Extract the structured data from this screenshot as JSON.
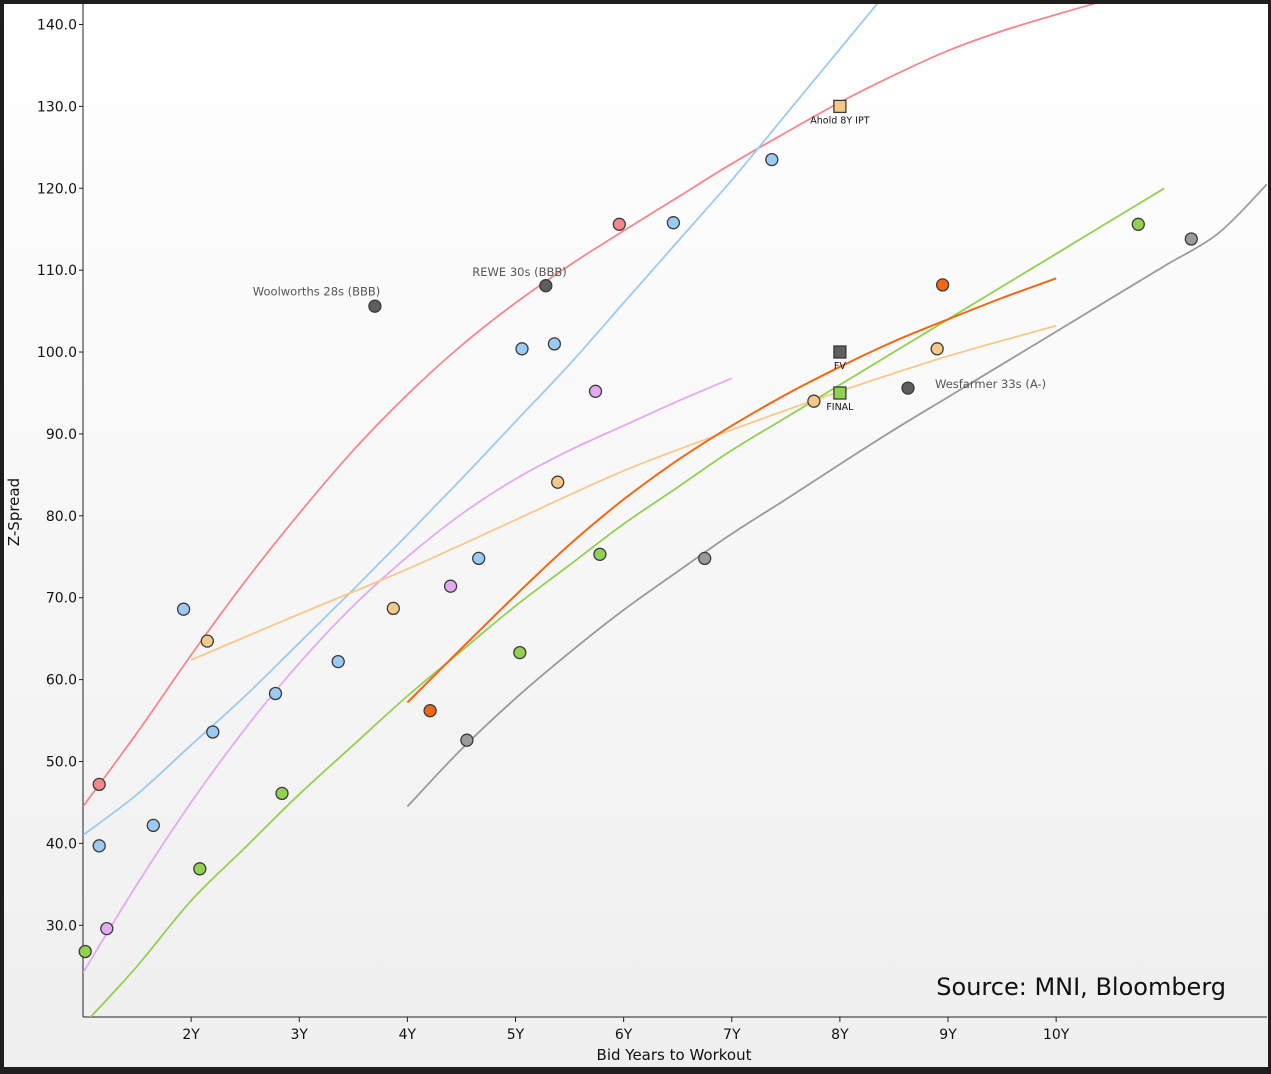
{
  "chart_data": {
    "type": "scatter",
    "title": "",
    "xlabel": "Bid Years to Workout",
    "ylabel": "Z-Spread",
    "source": "Source: MNI, Bloomberg",
    "xlim": [
      1.0,
      11.95
    ],
    "ylim": [
      18.8,
      142.5
    ],
    "x_ticks": [
      {
        "v": 2,
        "label": "2Y"
      },
      {
        "v": 3,
        "label": "3Y"
      },
      {
        "v": 4,
        "label": "4Y"
      },
      {
        "v": 5,
        "label": "5Y"
      },
      {
        "v": 6,
        "label": "6Y"
      },
      {
        "v": 7,
        "label": "7Y"
      },
      {
        "v": 8,
        "label": "8Y"
      },
      {
        "v": 9,
        "label": "9Y"
      },
      {
        "v": 10,
        "label": "10Y"
      }
    ],
    "y_ticks": [
      {
        "v": 30,
        "label": "30.0"
      },
      {
        "v": 40,
        "label": "40.0"
      },
      {
        "v": 50,
        "label": "50.0"
      },
      {
        "v": 60,
        "label": "60.0"
      },
      {
        "v": 70,
        "label": "70.0"
      },
      {
        "v": 80,
        "label": "80.0"
      },
      {
        "v": 90,
        "label": "90.0"
      },
      {
        "v": 100,
        "label": "100.0"
      },
      {
        "v": 110,
        "label": "110.0"
      },
      {
        "v": 120,
        "label": "120.0"
      },
      {
        "v": 130,
        "label": "130.0"
      },
      {
        "v": 140,
        "label": "140.0"
      }
    ],
    "series": [
      {
        "name": "pink",
        "color": "#f4868c",
        "curve": [
          [
            1.0,
            44.5
          ],
          [
            1.5,
            53.5
          ],
          [
            2.0,
            63.0
          ],
          [
            2.5,
            72.0
          ],
          [
            3.0,
            80.3
          ],
          [
            3.5,
            88.0
          ],
          [
            4.0,
            94.8
          ],
          [
            4.5,
            100.8
          ],
          [
            5.0,
            106.0
          ],
          [
            5.5,
            110.6
          ],
          [
            6.0,
            114.8
          ],
          [
            6.5,
            118.9
          ],
          [
            7.0,
            123.0
          ],
          [
            7.5,
            126.8
          ],
          [
            8.0,
            130.5
          ],
          [
            8.5,
            133.8
          ],
          [
            9.0,
            136.8
          ],
          [
            9.5,
            139.2
          ],
          [
            10.0,
            141.2
          ],
          [
            10.6,
            143.5
          ]
        ],
        "points": [
          [
            1.15,
            47.2
          ],
          [
            5.96,
            115.6
          ]
        ]
      },
      {
        "name": "light-blue",
        "color": "#9bcaf2",
        "curve": [
          [
            1.0,
            41.0
          ],
          [
            1.5,
            46.0
          ],
          [
            2.0,
            52.0
          ],
          [
            2.5,
            58.0
          ],
          [
            3.0,
            64.5
          ],
          [
            3.5,
            71.0
          ],
          [
            4.0,
            77.7
          ],
          [
            4.5,
            84.5
          ],
          [
            5.0,
            91.5
          ],
          [
            5.5,
            98.5
          ],
          [
            6.0,
            106.0
          ],
          [
            6.5,
            113.5
          ],
          [
            7.0,
            121.0
          ],
          [
            7.5,
            129.0
          ],
          [
            8.0,
            137.0
          ],
          [
            8.5,
            145.0
          ]
        ],
        "points": [
          [
            1.15,
            39.7
          ],
          [
            1.65,
            42.2
          ],
          [
            1.93,
            68.6
          ],
          [
            2.2,
            53.6
          ],
          [
            2.78,
            58.3
          ],
          [
            3.36,
            62.2
          ],
          [
            4.66,
            74.8
          ],
          [
            5.06,
            100.4
          ],
          [
            5.36,
            101.0
          ],
          [
            6.46,
            115.8
          ],
          [
            7.37,
            123.5
          ]
        ]
      },
      {
        "name": "lilac",
        "color": "#e2aaf0",
        "curve": [
          [
            1.0,
            24.2
          ],
          [
            1.5,
            35.0
          ],
          [
            2.0,
            45.0
          ],
          [
            2.5,
            54.0
          ],
          [
            3.0,
            62.0
          ],
          [
            3.5,
            69.0
          ],
          [
            4.0,
            75.0
          ],
          [
            4.5,
            80.2
          ],
          [
            5.0,
            84.5
          ],
          [
            5.5,
            88.0
          ],
          [
            6.0,
            91.0
          ],
          [
            6.5,
            94.0
          ],
          [
            7.0,
            96.8
          ]
        ],
        "points": [
          [
            1.22,
            29.6
          ],
          [
            4.4,
            71.4
          ],
          [
            5.74,
            95.2
          ]
        ]
      },
      {
        "name": "peach",
        "color": "#f8c889",
        "curve": [
          [
            2.0,
            62.4
          ],
          [
            3.0,
            68.0
          ],
          [
            4.0,
            73.5
          ],
          [
            5.0,
            79.5
          ],
          [
            6.0,
            85.5
          ],
          [
            7.0,
            90.5
          ],
          [
            8.0,
            95.2
          ],
          [
            9.0,
            99.5
          ],
          [
            10.0,
            103.2
          ]
        ],
        "points": [
          [
            2.15,
            64.7
          ],
          [
            3.87,
            68.7
          ],
          [
            5.39,
            84.1
          ],
          [
            7.76,
            94.0
          ],
          [
            8.9,
            100.4
          ]
        ],
        "square": {
          "x": 8.0,
          "y": 130.0,
          "label": "Ahold 8Y IPT"
        }
      },
      {
        "name": "green",
        "color": "#92d050",
        "curve": [
          [
            1.05,
            18.5
          ],
          [
            1.5,
            25.0
          ],
          [
            2.0,
            33.0
          ],
          [
            2.5,
            39.5
          ],
          [
            3.0,
            46.0
          ],
          [
            3.5,
            52.0
          ],
          [
            4.0,
            58.0
          ],
          [
            4.5,
            63.5
          ],
          [
            5.0,
            69.0
          ],
          [
            5.5,
            74.0
          ],
          [
            6.0,
            79.0
          ],
          [
            6.5,
            83.5
          ],
          [
            7.0,
            88.0
          ],
          [
            7.5,
            92.0
          ],
          [
            8.0,
            96.0
          ],
          [
            8.5,
            100.0
          ],
          [
            9.0,
            104.0
          ],
          [
            9.5,
            108.0
          ],
          [
            10.0,
            112.0
          ],
          [
            10.5,
            116.0
          ],
          [
            11.0,
            120.0
          ]
        ],
        "points": [
          [
            1.02,
            26.8
          ],
          [
            2.08,
            36.9
          ],
          [
            2.84,
            46.1
          ],
          [
            5.04,
            63.3
          ],
          [
            5.78,
            75.3
          ],
          [
            10.76,
            115.6
          ]
        ],
        "square": {
          "x": 8.0,
          "y": 95.0,
          "label": "FINAL"
        }
      },
      {
        "name": "orange",
        "color": "#f56613",
        "curve": [
          [
            4.0,
            57.2
          ],
          [
            4.5,
            63.8
          ],
          [
            5.0,
            70.3
          ],
          [
            5.5,
            76.5
          ],
          [
            6.0,
            82.0
          ],
          [
            6.5,
            86.8
          ],
          [
            7.0,
            91.0
          ],
          [
            7.5,
            94.8
          ],
          [
            8.0,
            98.2
          ],
          [
            8.5,
            101.3
          ],
          [
            9.0,
            104.0
          ],
          [
            9.5,
            106.6
          ],
          [
            10.0,
            109.0
          ]
        ],
        "points": [
          [
            4.21,
            56.2
          ],
          [
            8.95,
            108.2
          ]
        ]
      },
      {
        "name": "gray",
        "color": "#9a9a9a",
        "curve": [
          [
            4.0,
            44.5
          ],
          [
            4.5,
            51.5
          ],
          [
            5.0,
            57.7
          ],
          [
            5.5,
            63.3
          ],
          [
            6.0,
            68.5
          ],
          [
            6.5,
            73.2
          ],
          [
            7.0,
            77.8
          ],
          [
            7.5,
            82.0
          ],
          [
            8.0,
            86.3
          ],
          [
            8.5,
            90.5
          ],
          [
            9.0,
            94.5
          ],
          [
            9.5,
            98.5
          ],
          [
            10.0,
            102.5
          ],
          [
            10.5,
            106.5
          ],
          [
            11.0,
            110.5
          ],
          [
            11.5,
            114.5
          ],
          [
            11.95,
            120.5
          ]
        ],
        "points": [
          [
            4.55,
            52.6
          ],
          [
            6.75,
            74.8
          ],
          [
            11.25,
            113.8
          ]
        ]
      },
      {
        "name": "dark-gray",
        "color": "#5e5e5e",
        "points": [
          [
            3.7,
            105.6
          ],
          [
            5.28,
            108.1
          ],
          [
            8.63,
            95.6
          ]
        ],
        "square": {
          "x": 8.0,
          "y": 100.0,
          "label": "FV"
        }
      }
    ],
    "annotations": [
      {
        "text": "Woolworths 28s (BBB)",
        "x": 2.57,
        "y": 106.9,
        "anchor": "start"
      },
      {
        "text": "REWE 30s (BBB)",
        "x": 4.6,
        "y": 109.3,
        "anchor": "start"
      },
      {
        "text": "Wesfarmer 33s (A-)",
        "x": 8.88,
        "y": 95.6,
        "anchor": "start"
      }
    ]
  }
}
